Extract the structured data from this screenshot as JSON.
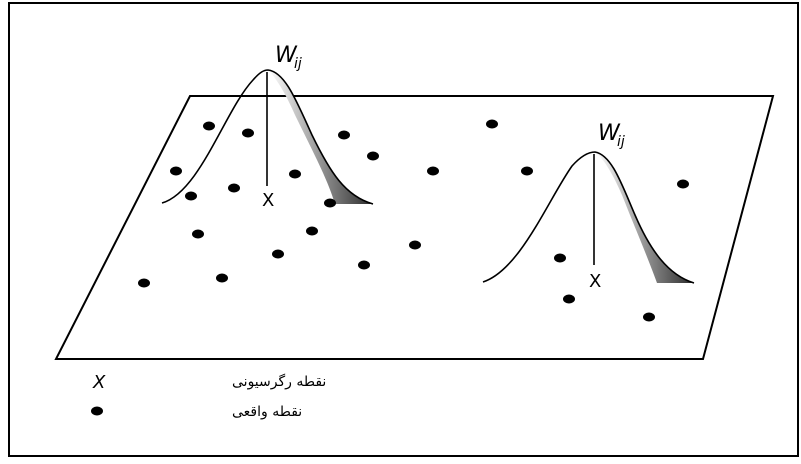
{
  "figure": {
    "kernel_left": {
      "weight_label": "W",
      "weight_subscript": "ij",
      "point_label": "X"
    },
    "kernel_right": {
      "weight_label": "W",
      "weight_subscript": "ij",
      "point_label": "X"
    },
    "data_points": [
      {
        "id": "p1"
      },
      {
        "id": "p2"
      },
      {
        "id": "p3"
      },
      {
        "id": "p4"
      },
      {
        "id": "p5"
      },
      {
        "id": "p6"
      },
      {
        "id": "p7"
      },
      {
        "id": "p8"
      },
      {
        "id": "p9"
      },
      {
        "id": "p10"
      },
      {
        "id": "p11"
      },
      {
        "id": "p12"
      },
      {
        "id": "p13"
      },
      {
        "id": "p14"
      },
      {
        "id": "p15"
      },
      {
        "id": "p16"
      },
      {
        "id": "p17"
      },
      {
        "id": "p18"
      },
      {
        "id": "p19"
      },
      {
        "id": "p20"
      },
      {
        "id": "p21"
      },
      {
        "id": "p22"
      },
      {
        "id": "p23"
      },
      {
        "id": "p24"
      }
    ]
  },
  "legend": {
    "regression_symbol": "X",
    "regression_label": "نقطه رگرسیونی",
    "actual_label": "نقطه واقعی"
  },
  "colors": {
    "ink": "#000000",
    "shade_dark": "#2f2f2f",
    "shade_light": "#ffffff"
  }
}
